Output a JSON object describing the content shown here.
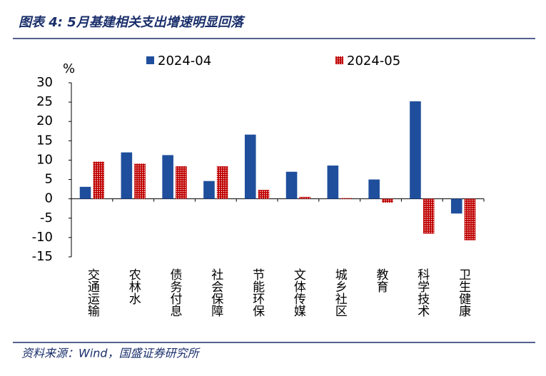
{
  "chart_data": {
    "type": "bar",
    "title": "图表 4:  5月基建相关支出增速明显回落",
    "y_unit": "%",
    "categories": [
      "交通运输",
      "农林水",
      "债务付息",
      "社会保障",
      "节能环保",
      "文体传媒",
      "城乡社区",
      "教育",
      "科学技术",
      "卫生健康"
    ],
    "series": [
      {
        "name": "2024-04",
        "color": "#1f4e9c",
        "values": [
          3.1,
          12.0,
          11.3,
          4.6,
          16.6,
          7.0,
          8.6,
          5.0,
          25.2,
          -3.8
        ]
      },
      {
        "name": "2024-05",
        "color": "#c00000",
        "pattern": "dots",
        "values": [
          9.6,
          9.1,
          8.4,
          8.4,
          2.3,
          0.5,
          0.2,
          -1.0,
          -9.0,
          -10.7
        ]
      }
    ],
    "ylim": [
      -15,
      30
    ],
    "yticks": [
      -15,
      -10,
      -5,
      0,
      5,
      10,
      15,
      20,
      25,
      30
    ],
    "grid": false
  },
  "source": "资料来源：Wind，国盛证券研究所"
}
